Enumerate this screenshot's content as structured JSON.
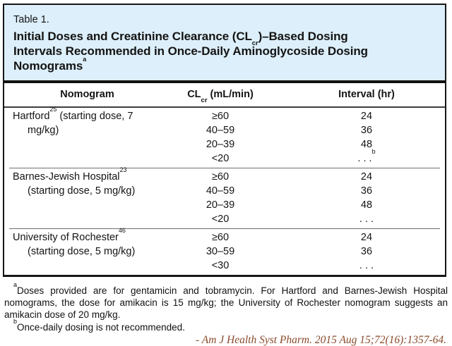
{
  "colors": {
    "panel_bg": "#ddeffa",
    "box_border": "#161616",
    "text": "#141414",
    "group_separator": "#6e6e6e",
    "citation": "#8a4a2b"
  },
  "panel": {
    "label": "Table 1.",
    "title_line1_pre": "Initial Doses and Creatinine Clearance (CL",
    "title_line1_sub": "cr",
    "title_line1_post": ")–Based Dosing",
    "title_line2": "Intervals Recommended in Once-Daily Aminoglycoside Dosing",
    "title_line3": "Nomograms",
    "title_line3_sup": "a"
  },
  "table": {
    "header": {
      "nomogram": "Nomogram",
      "clcr_pre": "CL",
      "clcr_sub": "cr",
      "clcr_post": " (mL/min)",
      "interval": "Interval (hr)"
    },
    "groups": [
      {
        "name": "Hartford",
        "ref": "25",
        "desc_line1": " (starting dose, 7",
        "desc_line2": "mg/kg)",
        "rows": [
          {
            "clcr": "≥60",
            "interval": "24"
          },
          {
            "clcr": "40–59",
            "interval": "36"
          },
          {
            "clcr": "20–39",
            "interval": "48"
          },
          {
            "clcr": "<20",
            "interval": ". . .",
            "interval_sup": "b"
          }
        ]
      },
      {
        "name": "Barnes-Jewish Hospital",
        "ref": "23",
        "desc_line1": "",
        "desc_line2": "(starting dose, 5 mg/kg)",
        "rows": [
          {
            "clcr": "≥60",
            "interval": "24"
          },
          {
            "clcr": "40–59",
            "interval": "36"
          },
          {
            "clcr": "20–39",
            "interval": "48"
          },
          {
            "clcr": "<20",
            "interval": ". . ."
          }
        ]
      },
      {
        "name": "University of Rochester",
        "ref": "46",
        "desc_line1": "",
        "desc_line2": "(starting dose, 5 mg/kg)",
        "rows": [
          {
            "clcr": "≥60",
            "interval": "24"
          },
          {
            "clcr": "30–59",
            "interval": "36"
          },
          {
            "clcr": "<30",
            "interval": ". . ."
          }
        ]
      }
    ]
  },
  "footnotes": [
    {
      "marker": "a",
      "text": "Doses provided are for gentamicin and tobramycin. For Hartford and Barnes-Jewish Hospital nomograms, the dose for amikacin is 15 mg/kg; the University of Rochester nomogram suggests an amikacin dose of 20 mg/kg."
    },
    {
      "marker": "b",
      "text": "Once-daily dosing is not recommended."
    }
  ],
  "citation": "- Am J Health Syst Pharm. 2015 Aug 15;72(16):1357-64."
}
